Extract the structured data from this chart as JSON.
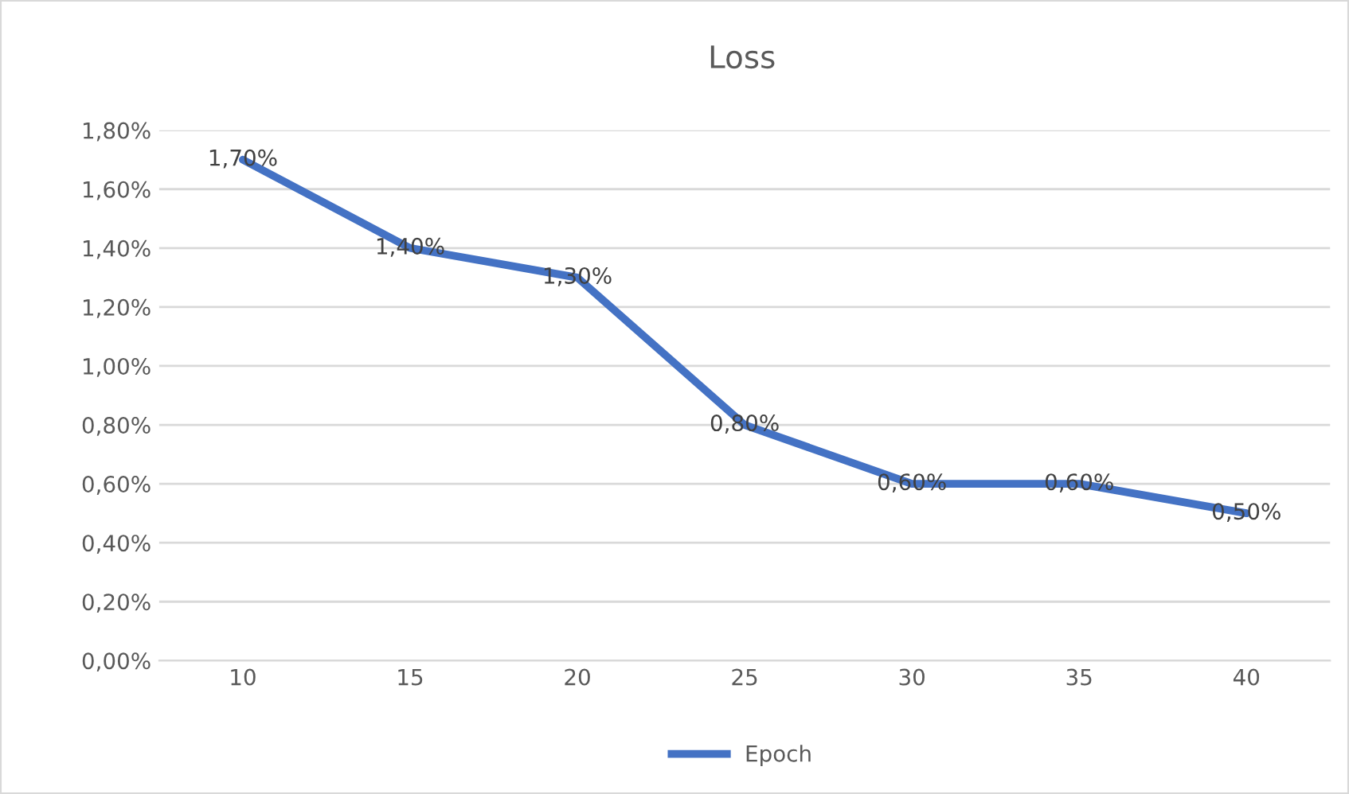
{
  "chart_data": {
    "type": "line",
    "title": "Loss",
    "categories": [
      "10",
      "15",
      "20",
      "25",
      "30",
      "35",
      "40"
    ],
    "series": [
      {
        "name": "Epoch",
        "color": "#4472c4",
        "values": [
          1.7,
          1.4,
          1.3,
          0.8,
          0.6,
          0.6,
          0.5
        ],
        "value_labels": [
          "1,70%",
          "1,40%",
          "1,30%",
          "0,80%",
          "0,60%",
          "0,60%",
          "0,50%"
        ]
      }
    ],
    "ylim": [
      0,
      1.8
    ],
    "yticks": [
      {
        "value": 0,
        "label": "0,00%"
      },
      {
        "value": 0.2,
        "label": "0,20%"
      },
      {
        "value": 0.4,
        "label": "0,40%"
      },
      {
        "value": 0.6,
        "label": "0,60%"
      },
      {
        "value": 0.8,
        "label": "0,80%"
      },
      {
        "value": 1.0,
        "label": "1,00%"
      },
      {
        "value": 1.2,
        "label": "1,20%"
      },
      {
        "value": 1.4,
        "label": "1,40%"
      },
      {
        "value": 1.6,
        "label": "1,60%"
      },
      {
        "value": 1.8,
        "label": "1,80%"
      }
    ],
    "grid": "y",
    "legend": "bottom",
    "marker": "none",
    "line_style": "solid"
  }
}
